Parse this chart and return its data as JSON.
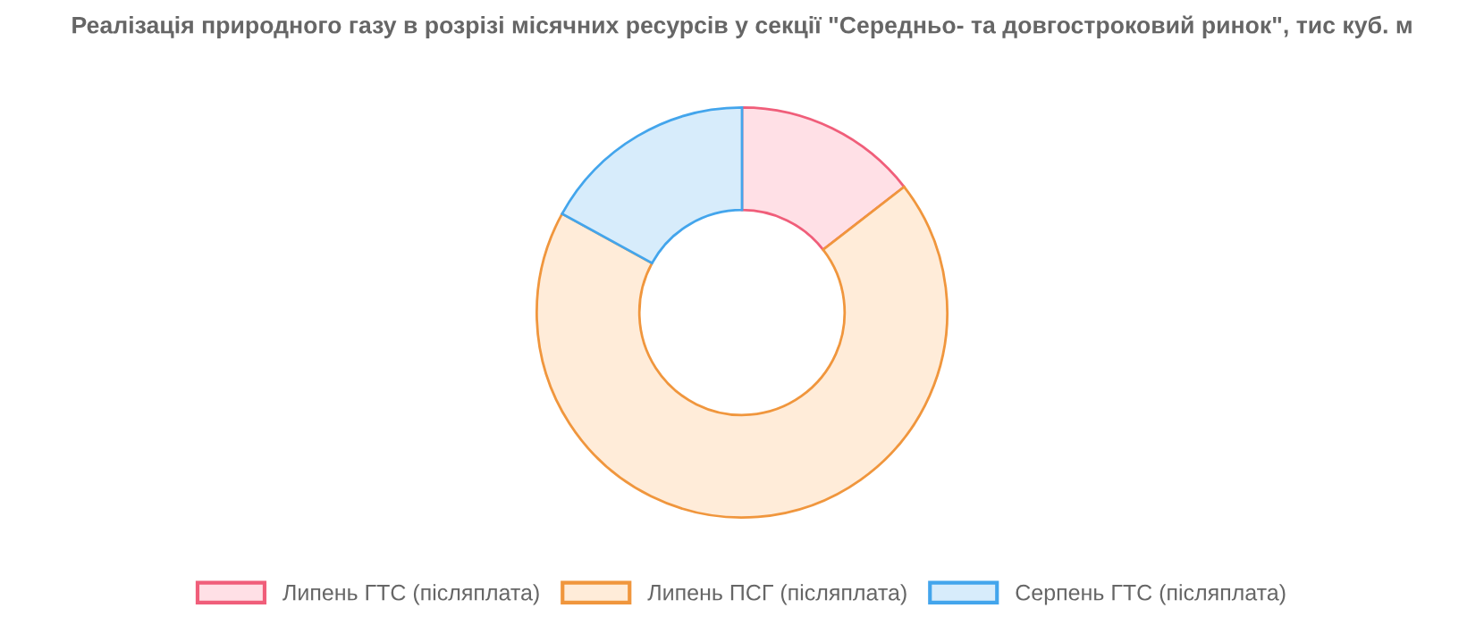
{
  "chart_data": {
    "type": "donut",
    "title": "Реалізація природного газу в розрізі місячних ресурсів у секції \"Середньо- та довгостроковий ринок\", тис куб. м",
    "categories": [
      "Липень ГТС (післяплата)",
      "Липень ПСГ (післяплата)",
      "Серпень ГТС (післяплата)"
    ],
    "values": [
      14.5,
      68.5,
      17.0
    ],
    "colors": [
      "#ffe0e6",
      "#ffecd9",
      "#d7ecfb"
    ],
    "legend": "bottom"
  }
}
